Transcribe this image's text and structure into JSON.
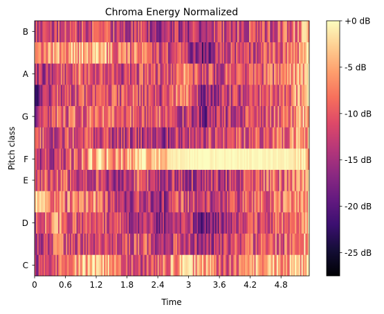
{
  "chart_data": {
    "type": "heatmap",
    "title": "Chroma Energy Normalized",
    "xlabel": "Time",
    "ylabel": "Pitch class",
    "xlim": [
      0,
      5.35
    ],
    "x_ticks": [
      "0",
      "0.6",
      "1.2",
      "1.8",
      "2.4",
      "3",
      "3.6",
      "4.2",
      "4.8"
    ],
    "x_tick_values": [
      0,
      0.6,
      1.2,
      1.8,
      2.4,
      3.0,
      3.6,
      4.2,
      4.8
    ],
    "rows": [
      "C",
      "C#",
      "D",
      "D#",
      "E",
      "F",
      "F#",
      "G",
      "G#",
      "A",
      "A#",
      "B"
    ],
    "y_ticks": [
      "C",
      "D",
      "E",
      "F",
      "G",
      "A",
      "B"
    ],
    "y_tick_rows": [
      0,
      2,
      4,
      5,
      7,
      9,
      11
    ],
    "colormap": "magma",
    "colorbar": {
      "range_db": [
        -27.5,
        0
      ],
      "ticks": [
        "+0 dB",
        "-5 dB",
        "-10 dB",
        "-15 dB",
        "-20 dB",
        "-25 dB"
      ],
      "tick_values": [
        0,
        -5,
        -10,
        -15,
        -20,
        -25
      ]
    },
    "row_profiles": {
      "C": [
        -14,
        -10,
        -6,
        -1,
        -10,
        -12,
        -9,
        -4,
        -6,
        -11,
        -7,
        -5,
        -5,
        -4
      ],
      "C#": [
        -14,
        -10,
        -12,
        -11,
        -13,
        -10,
        -13,
        -12,
        -16,
        -12,
        -11,
        -9,
        -10,
        -3
      ],
      "D": [
        -12,
        -7,
        -11,
        -10,
        -12,
        -14,
        -16,
        -11,
        -20,
        -13,
        -11,
        -11,
        -9,
        -3
      ],
      "D#": [
        -3,
        -9,
        -9,
        -7,
        -14,
        -13,
        -16,
        -10,
        -13,
        -13,
        -11,
        -9,
        -9,
        -4
      ],
      "E": [
        -13,
        -9,
        -12,
        -12,
        -14,
        -10,
        -16,
        -13,
        -14,
        -13,
        -11,
        -9,
        -9,
        -4
      ],
      "F": [
        -15,
        -13,
        -9,
        -3,
        -7,
        -2,
        -2,
        0,
        0,
        0,
        0,
        0,
        0,
        -4
      ],
      "F#": [
        -10,
        -13,
        -10,
        -13,
        -13,
        -13,
        -15,
        -13,
        -12,
        -11,
        -11,
        -10,
        -8,
        -5
      ],
      "G": [
        -14,
        -10,
        -9,
        -9,
        -9,
        -11,
        -10,
        -12,
        -17,
        -13,
        -11,
        -10,
        -9,
        -4
      ],
      "G#": [
        -20,
        -12,
        -12,
        -8,
        -11,
        -10,
        -13,
        -5,
        -17,
        -12,
        -12,
        -11,
        -9,
        -4
      ],
      "A": [
        -15,
        -12,
        -9,
        -10,
        -12,
        -11,
        -12,
        -7,
        -12,
        -11,
        -10,
        -10,
        -7,
        -3
      ],
      "A#": [
        -9,
        -6,
        -5,
        -3,
        -9,
        -9,
        -12,
        -12,
        -18,
        -11,
        -12,
        -11,
        -9,
        -4
      ],
      "B": [
        -14,
        -12,
        -12,
        -11,
        -12,
        -12,
        -14,
        -14,
        -15,
        -12,
        -11,
        -11,
        -9,
        -4
      ]
    }
  }
}
